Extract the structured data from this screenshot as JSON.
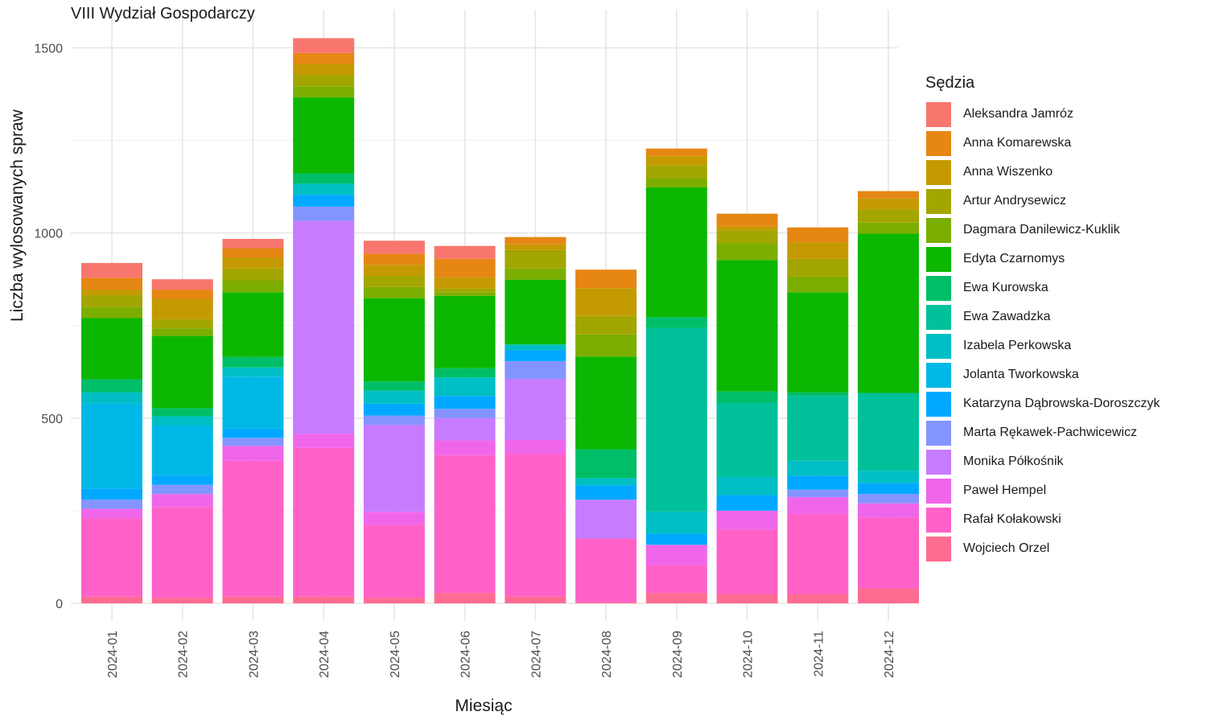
{
  "chart_data": {
    "type": "bar",
    "stacked": true,
    "title": "VIII Wydział Gospodarczy",
    "xlabel": "Miesiąc",
    "ylabel": "Liczba wylosowanych spraw",
    "ylim": [
      0,
      1550
    ],
    "yticks": [
      0,
      500,
      1000,
      1500
    ],
    "grid": true,
    "legend_title": "Sędzia",
    "legend_position": "right",
    "categories": [
      "2024-01",
      "2024-02",
      "2024-03",
      "2024-04",
      "2024-05",
      "2024-06",
      "2024-07",
      "2024-08",
      "2024-09",
      "2024-10",
      "2024-11",
      "2024-12"
    ],
    "series": [
      {
        "name": "Wojciech Orzel",
        "color": "#FF6C91",
        "values": [
          18,
          15,
          18,
          18,
          15,
          28,
          18,
          3,
          28,
          25,
          25,
          40
        ]
      },
      {
        "name": "Rafał Kołakowski",
        "color": "#FF61C9",
        "values": [
          212,
          245,
          367,
          402,
          197,
          372,
          385,
          172,
          75,
          175,
          217,
          192
        ]
      },
      {
        "name": "Paweł Hempel",
        "color": "#F066EA",
        "values": [
          25,
          35,
          40,
          38,
          35,
          40,
          38,
          0,
          55,
          50,
          45,
          38
        ]
      },
      {
        "name": "Monika Półkośnik",
        "color": "#C77CFF",
        "values": [
          0,
          0,
          0,
          575,
          235,
          60,
          165,
          105,
          0,
          0,
          0,
          0
        ]
      },
      {
        "name": "Marta Rękawek-Pachwicewicz",
        "color": "#8494FF",
        "values": [
          25,
          25,
          22,
          38,
          25,
          25,
          48,
          0,
          0,
          0,
          20,
          25
        ]
      },
      {
        "name": "Katarzyna Dąbrowska-Doroszczyk",
        "color": "#00A9FF",
        "values": [
          30,
          25,
          25,
          32,
          32,
          35,
          30,
          38,
          30,
          42,
          38,
          30
        ]
      },
      {
        "name": "Jolanta Tworkowska",
        "color": "#00B8E7",
        "values": [
          230,
          135,
          140,
          0,
          0,
          0,
          0,
          0,
          0,
          0,
          0,
          0
        ]
      },
      {
        "name": "Izabela Perkowska",
        "color": "#00BFC4",
        "values": [
          30,
          25,
          25,
          30,
          35,
          50,
          15,
          20,
          60,
          50,
          40,
          33
        ]
      },
      {
        "name": "Ewa Zawadzka",
        "color": "#00C19A",
        "values": [
          0,
          0,
          0,
          0,
          0,
          0,
          0,
          0,
          495,
          200,
          175,
          210
        ]
      },
      {
        "name": "Ewa Kurowska",
        "color": "#00BE67",
        "values": [
          35,
          22,
          28,
          28,
          25,
          25,
          0,
          78,
          30,
          30,
          10,
          0
        ]
      },
      {
        "name": "Edyta Czarnomys",
        "color": "#0CB702",
        "values": [
          165,
          195,
          175,
          205,
          225,
          195,
          175,
          250,
          350,
          355,
          270,
          430
        ]
      },
      {
        "name": "Dagmara Danilewicz-Kuklik",
        "color": "#7CAE00",
        "values": [
          30,
          20,
          32,
          30,
          30,
          10,
          30,
          60,
          25,
          45,
          42,
          30
        ]
      },
      {
        "name": "Artur Andrysewicz",
        "color": "#A3A500",
        "values": [
          32,
          25,
          32,
          30,
          30,
          10,
          50,
          50,
          35,
          35,
          48,
          35
        ]
      },
      {
        "name": "Anna Wiszenko",
        "color": "#C49A00",
        "values": [
          15,
          55,
          30,
          30,
          30,
          30,
          15,
          75,
          25,
          10,
          45,
          30
        ]
      },
      {
        "name": "Anna Komarewska",
        "color": "#E68613",
        "values": [
          32,
          25,
          25,
          30,
          30,
          50,
          20,
          50,
          20,
          35,
          40,
          20
        ]
      },
      {
        "name": "Aleksandra Jamróz",
        "color": "#F8766D",
        "values": [
          40,
          28,
          25,
          40,
          35,
          35,
          0,
          0,
          0,
          0,
          0,
          0
        ]
      }
    ],
    "legend_order": [
      "Aleksandra Jamróz",
      "Anna Komarewska",
      "Anna Wiszenko",
      "Artur Andrysewicz",
      "Dagmara Danilewicz-Kuklik",
      "Edyta Czarnomys",
      "Ewa Kurowska",
      "Ewa Zawadzka",
      "Izabela Perkowska",
      "Jolanta Tworkowska",
      "Katarzyna Dąbrowska-Doroszczyk",
      "Marta Rękawek-Pachwicewicz",
      "Monika Półkośnik",
      "Paweł Hempel",
      "Rafał Kołakowski",
      "Wojciech Orzel"
    ]
  }
}
